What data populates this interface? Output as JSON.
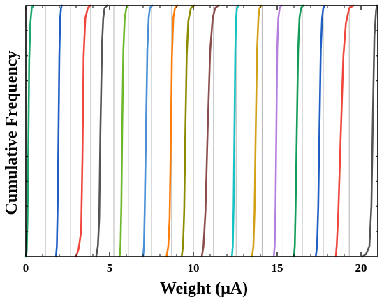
{
  "chart_data": {
    "type": "line",
    "title": "",
    "xlabel": "Weight (μA)",
    "ylabel": "Cumulative Frequency",
    "xlim": [
      0,
      21
    ],
    "ylim": [
      0,
      1
    ],
    "xticks": [
      0,
      5,
      10,
      15,
      20
    ],
    "xtick_labels": [
      "0",
      "5",
      "10",
      "15",
      "20"
    ],
    "minor_xticks": [
      1,
      2,
      3,
      4,
      6,
      7,
      8,
      9,
      11,
      12,
      13,
      14,
      16,
      17,
      18,
      19
    ],
    "grid": "vertical lines at weight state boundaries",
    "legend": "none",
    "grid_lines_x": [
      1.17,
      2.67,
      3.87,
      5.25,
      6.12,
      7.5,
      8.7,
      10.0,
      11.2,
      12.55,
      14.1,
      15.35,
      16.5,
      17.75,
      19.3
    ],
    "series": [
      {
        "color": "#1aa86b",
        "x": [
          0.0,
          0.05,
          0.1,
          0.15,
          0.2,
          0.27,
          0.35,
          0.45
        ],
        "y": [
          0.0,
          0.02,
          0.15,
          0.45,
          0.78,
          0.93,
          0.99,
          1.0
        ]
      },
      {
        "color": "#1f5fc4",
        "x": [
          1.8,
          1.85,
          1.9,
          1.95,
          2.0,
          2.05,
          2.1,
          2.15
        ],
        "y": [
          0.0,
          0.04,
          0.2,
          0.5,
          0.8,
          0.95,
          0.99,
          1.0
        ]
      },
      {
        "color": "#f0463c",
        "x": [
          3.0,
          3.15,
          3.3,
          3.38,
          3.45,
          3.55,
          3.7,
          3.85
        ],
        "y": [
          0.0,
          0.03,
          0.1,
          0.4,
          0.8,
          0.95,
          0.99,
          1.0
        ]
      },
      {
        "color": "#555555",
        "x": [
          4.2,
          4.3,
          4.38,
          4.45,
          4.55,
          4.62,
          4.7,
          4.85
        ],
        "y": [
          0.0,
          0.04,
          0.15,
          0.5,
          0.85,
          0.95,
          0.99,
          1.0
        ]
      },
      {
        "color": "#6cb82a",
        "x": [
          5.6,
          5.65,
          5.7,
          5.75,
          5.82,
          5.9,
          6.0,
          6.1
        ],
        "y": [
          0.0,
          0.04,
          0.2,
          0.5,
          0.82,
          0.95,
          0.99,
          1.0
        ]
      },
      {
        "color": "#4a90d6",
        "x": [
          7.0,
          7.05,
          7.1,
          7.17,
          7.25,
          7.33,
          7.4,
          7.55
        ],
        "y": [
          0.0,
          0.04,
          0.2,
          0.5,
          0.82,
          0.95,
          0.99,
          1.0
        ]
      },
      {
        "color": "#ff7f0e",
        "x": [
          8.4,
          8.5,
          8.58,
          8.65,
          8.72,
          8.8,
          8.9,
          9.05
        ],
        "y": [
          0.0,
          0.04,
          0.15,
          0.45,
          0.8,
          0.95,
          0.99,
          1.0
        ]
      },
      {
        "color": "#8c8a00",
        "x": [
          9.3,
          9.38,
          9.45,
          9.52,
          9.6,
          9.7,
          9.85,
          10.05
        ],
        "y": [
          0.0,
          0.04,
          0.18,
          0.5,
          0.8,
          0.94,
          0.99,
          1.0
        ]
      },
      {
        "color": "#8b4d4d",
        "x": [
          10.5,
          10.6,
          10.72,
          10.85,
          11.0,
          11.15,
          11.3,
          11.5
        ],
        "y": [
          0.0,
          0.04,
          0.18,
          0.5,
          0.82,
          0.95,
          0.99,
          1.0
        ]
      },
      {
        "color": "#17c2c2",
        "x": [
          12.3,
          12.35,
          12.4,
          12.45,
          12.5,
          12.55,
          12.6,
          12.7
        ],
        "y": [
          0.0,
          0.04,
          0.2,
          0.5,
          0.82,
          0.95,
          0.99,
          1.0
        ]
      },
      {
        "color": "#d4a017",
        "x": [
          13.5,
          13.58,
          13.65,
          13.72,
          13.8,
          13.88,
          13.95,
          14.05
        ],
        "y": [
          0.0,
          0.04,
          0.18,
          0.5,
          0.82,
          0.95,
          0.99,
          1.0
        ]
      },
      {
        "color": "#b57fe0",
        "x": [
          14.8,
          14.85,
          14.9,
          14.95,
          15.0,
          15.07,
          15.15,
          15.25
        ],
        "y": [
          0.0,
          0.04,
          0.2,
          0.5,
          0.82,
          0.95,
          0.99,
          1.0
        ]
      },
      {
        "color": "#139b5a",
        "x": [
          16.0,
          16.05,
          16.1,
          16.17,
          16.25,
          16.33,
          16.42,
          16.55
        ],
        "y": [
          0.0,
          0.04,
          0.2,
          0.5,
          0.82,
          0.95,
          0.99,
          1.0
        ]
      },
      {
        "color": "#1f5fc4",
        "x": [
          17.3,
          17.38,
          17.45,
          17.52,
          17.6,
          17.68,
          17.75,
          17.85
        ],
        "y": [
          0.0,
          0.04,
          0.2,
          0.5,
          0.82,
          0.95,
          0.99,
          1.0
        ]
      },
      {
        "color": "#f0463c",
        "x": [
          18.5,
          18.55,
          18.65,
          18.8,
          18.95,
          19.1,
          19.3,
          19.55
        ],
        "y": [
          0.0,
          0.04,
          0.18,
          0.5,
          0.8,
          0.93,
          0.99,
          1.0
        ]
      },
      {
        "color": "#555555",
        "x": [
          20.1,
          20.3,
          20.5,
          20.62,
          20.72,
          20.8,
          20.9,
          20.96
        ],
        "y": [
          0.0,
          0.01,
          0.04,
          0.2,
          0.6,
          0.88,
          0.98,
          1.0
        ]
      }
    ]
  }
}
